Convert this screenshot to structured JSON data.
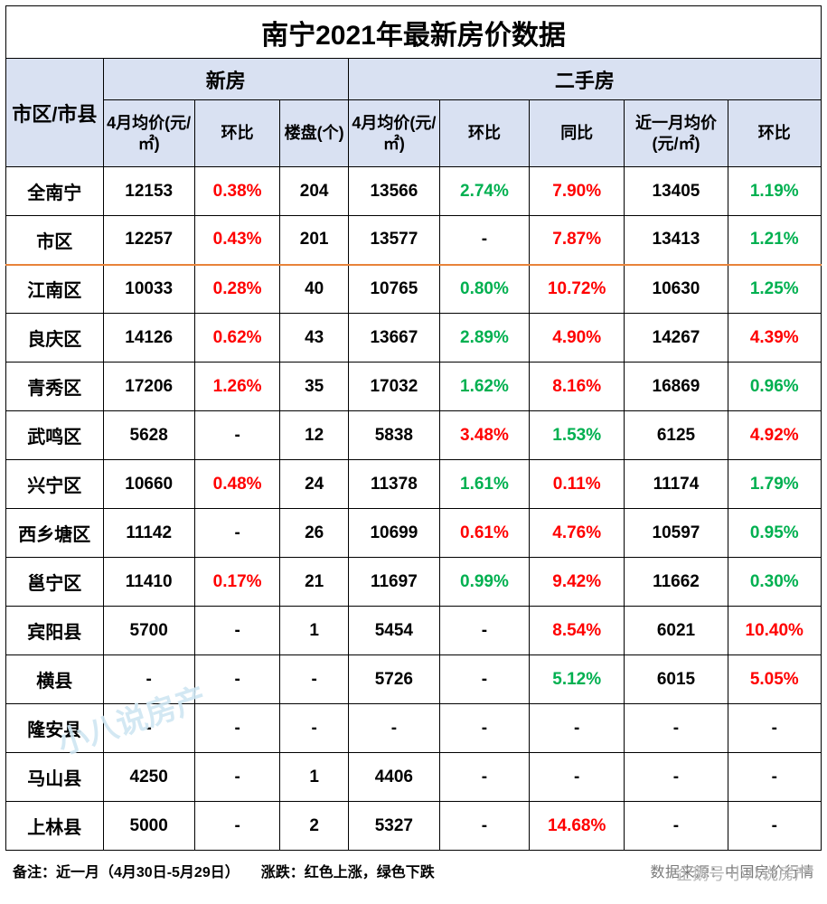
{
  "title": "南宁2021年最新房价数据",
  "header": {
    "region": "市区/市县",
    "group_new": "新房",
    "group_used": "二手房",
    "new_price": "4月均价(元/㎡)",
    "new_mom": "环比",
    "new_count": "楼盘(个)",
    "used_price": "4月均价(元/㎡)",
    "used_mom": "环比",
    "used_yoy": "同比",
    "used_m1_price": "近一月均价(元/㎡)",
    "used_m1_mom": "环比"
  },
  "colors": {
    "up": "#ff0000",
    "down": "#00b050",
    "neutral": "#000000",
    "header_bg": "#d9e1f2",
    "border": "#000000",
    "separator": "#e8833a"
  },
  "rows": [
    {
      "region": "全南宁",
      "new_price": "12153",
      "new_mom": "0.38%",
      "new_mom_c": "up",
      "new_count": "204",
      "used_price": "13566",
      "used_mom": "2.74%",
      "used_mom_c": "down",
      "used_yoy": "7.90%",
      "used_yoy_c": "up",
      "used_m1_price": "13405",
      "used_m1_mom": "1.19%",
      "used_m1_mom_c": "down",
      "sep": false
    },
    {
      "region": "市区",
      "new_price": "12257",
      "new_mom": "0.43%",
      "new_mom_c": "up",
      "new_count": "201",
      "used_price": "13577",
      "used_mom": "-",
      "used_mom_c": "neutral",
      "used_yoy": "7.87%",
      "used_yoy_c": "up",
      "used_m1_price": "13413",
      "used_m1_mom": "1.21%",
      "used_m1_mom_c": "down",
      "sep": true
    },
    {
      "region": "江南区",
      "new_price": "10033",
      "new_mom": "0.28%",
      "new_mom_c": "up",
      "new_count": "40",
      "used_price": "10765",
      "used_mom": "0.80%",
      "used_mom_c": "down",
      "used_yoy": "10.72%",
      "used_yoy_c": "up",
      "used_m1_price": "10630",
      "used_m1_mom": "1.25%",
      "used_m1_mom_c": "down",
      "sep": false
    },
    {
      "region": "良庆区",
      "new_price": "14126",
      "new_mom": "0.62%",
      "new_mom_c": "up",
      "new_count": "43",
      "used_price": "13667",
      "used_mom": "2.89%",
      "used_mom_c": "down",
      "used_yoy": "4.90%",
      "used_yoy_c": "up",
      "used_m1_price": "14267",
      "used_m1_mom": "4.39%",
      "used_m1_mom_c": "up",
      "sep": false
    },
    {
      "region": "青秀区",
      "new_price": "17206",
      "new_mom": "1.26%",
      "new_mom_c": "up",
      "new_count": "35",
      "used_price": "17032",
      "used_mom": "1.62%",
      "used_mom_c": "down",
      "used_yoy": "8.16%",
      "used_yoy_c": "up",
      "used_m1_price": "16869",
      "used_m1_mom": "0.96%",
      "used_m1_mom_c": "down",
      "sep": false
    },
    {
      "region": "武鸣区",
      "new_price": "5628",
      "new_mom": "-",
      "new_mom_c": "neutral",
      "new_count": "12",
      "used_price": "5838",
      "used_mom": "3.48%",
      "used_mom_c": "up",
      "used_yoy": "1.53%",
      "used_yoy_c": "down",
      "used_m1_price": "6125",
      "used_m1_mom": "4.92%",
      "used_m1_mom_c": "up",
      "sep": false
    },
    {
      "region": "兴宁区",
      "new_price": "10660",
      "new_mom": "0.48%",
      "new_mom_c": "up",
      "new_count": "24",
      "used_price": "11378",
      "used_mom": "1.61%",
      "used_mom_c": "down",
      "used_yoy": "0.11%",
      "used_yoy_c": "up",
      "used_m1_price": "11174",
      "used_m1_mom": "1.79%",
      "used_m1_mom_c": "down",
      "sep": false
    },
    {
      "region": "西乡塘区",
      "new_price": "11142",
      "new_mom": "-",
      "new_mom_c": "neutral",
      "new_count": "26",
      "used_price": "10699",
      "used_mom": "0.61%",
      "used_mom_c": "up",
      "used_yoy": "4.76%",
      "used_yoy_c": "up",
      "used_m1_price": "10597",
      "used_m1_mom": "0.95%",
      "used_m1_mom_c": "down",
      "sep": false
    },
    {
      "region": "邕宁区",
      "new_price": "11410",
      "new_mom": "0.17%",
      "new_mom_c": "up",
      "new_count": "21",
      "used_price": "11697",
      "used_mom": "0.99%",
      "used_mom_c": "down",
      "used_yoy": "9.42%",
      "used_yoy_c": "up",
      "used_m1_price": "11662",
      "used_m1_mom": "0.30%",
      "used_m1_mom_c": "down",
      "sep": false
    },
    {
      "region": "宾阳县",
      "new_price": "5700",
      "new_mom": "-",
      "new_mom_c": "neutral",
      "new_count": "1",
      "used_price": "5454",
      "used_mom": "-",
      "used_mom_c": "neutral",
      "used_yoy": "8.54%",
      "used_yoy_c": "up",
      "used_m1_price": "6021",
      "used_m1_mom": "10.40%",
      "used_m1_mom_c": "up",
      "sep": false
    },
    {
      "region": "横县",
      "new_price": "-",
      "new_mom": "-",
      "new_mom_c": "neutral",
      "new_count": "-",
      "used_price": "5726",
      "used_mom": "-",
      "used_mom_c": "neutral",
      "used_yoy": "5.12%",
      "used_yoy_c": "down",
      "used_m1_price": "6015",
      "used_m1_mom": "5.05%",
      "used_m1_mom_c": "up",
      "sep": false
    },
    {
      "region": "隆安县",
      "new_price": "-",
      "new_mom": "-",
      "new_mom_c": "neutral",
      "new_count": "-",
      "used_price": "-",
      "used_mom": "-",
      "used_mom_c": "neutral",
      "used_yoy": "-",
      "used_yoy_c": "neutral",
      "used_m1_price": "-",
      "used_m1_mom": "-",
      "used_m1_mom_c": "neutral",
      "sep": false
    },
    {
      "region": "马山县",
      "new_price": "4250",
      "new_mom": "-",
      "new_mom_c": "neutral",
      "new_count": "1",
      "used_price": "4406",
      "used_mom": "-",
      "used_mom_c": "neutral",
      "used_yoy": "-",
      "used_yoy_c": "neutral",
      "used_m1_price": "-",
      "used_m1_mom": "-",
      "used_m1_mom_c": "neutral",
      "sep": false
    },
    {
      "region": "上林县",
      "new_price": "5000",
      "new_mom": "-",
      "new_mom_c": "neutral",
      "new_count": "2",
      "used_price": "5327",
      "used_mom": "-",
      "used_mom_c": "neutral",
      "used_yoy": "14.68%",
      "used_yoy_c": "up",
      "used_m1_price": "-",
      "used_m1_mom": "-",
      "used_m1_mom_c": "neutral",
      "sep": false
    }
  ],
  "footer": {
    "left": "备注：近一月（4月30日-5月29日）　　涨跌：红色上涨，绿色下跌",
    "right": "数据来源：中国房价行情"
  },
  "watermark1": "小八说房产",
  "watermark2": "企鹅号 小八说房产"
}
